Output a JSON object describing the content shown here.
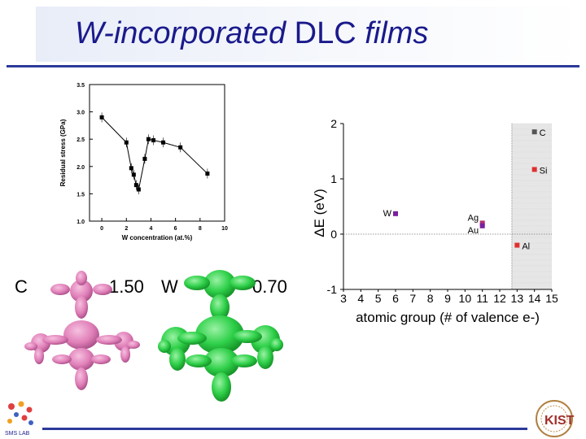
{
  "slide": {
    "title_italic": "W-incorporated",
    "title_dlc": "DLC",
    "title_films": "films",
    "footer_logo_text": "SMS LAB",
    "brand_color": "#1a1a8c",
    "rule_color": "#2b3a9b"
  },
  "molecules": {
    "c_label": "C",
    "c_value": "1.50",
    "w_label": "W",
    "w_value": "0.70",
    "c_color": "#e07fb8",
    "w_color": "#2fd04a"
  },
  "chart_data": [
    {
      "type": "line",
      "xlabel": "W concentration (at.%)",
      "ylabel": "Residual stress (GPa)",
      "xlim": [
        -1,
        10
      ],
      "ylim": [
        1.0,
        3.5
      ],
      "xticks": [
        "0",
        "2",
        "4",
        "6",
        "8",
        "10"
      ],
      "yticks": [
        "1.0",
        "1.5",
        "2.0",
        "2.5",
        "3.0",
        "3.5"
      ],
      "x": [
        0.0,
        2.0,
        2.4,
        2.6,
        2.8,
        3.0,
        3.5,
        3.8,
        4.2,
        5.0,
        6.4,
        8.6
      ],
      "y": [
        2.9,
        2.44,
        1.97,
        1.85,
        1.66,
        1.58,
        2.14,
        2.5,
        2.48,
        2.44,
        2.35,
        1.87
      ],
      "grid": false
    },
    {
      "type": "scatter",
      "xlabel": "atomic group (# of valence e-)",
      "ylabel": "ΔE (eV)",
      "xlim": [
        3,
        15
      ],
      "ylim": [
        -1,
        2
      ],
      "xticks": [
        "3",
        "4",
        "5",
        "6",
        "7",
        "8",
        "9",
        "10",
        "11",
        "12",
        "13",
        "14",
        "15"
      ],
      "yticks": [
        "-1",
        "0",
        "1",
        "2"
      ],
      "points": [
        {
          "label": "C",
          "x": 14,
          "y": 1.85,
          "color": "#555555"
        },
        {
          "label": "Si",
          "x": 14,
          "y": 1.17,
          "color": "#e03030"
        },
        {
          "label": "W",
          "x": 6,
          "y": 0.37,
          "color": "#7a1fa0"
        },
        {
          "label": "Ag",
          "x": 11,
          "y": 0.2,
          "color": "#b03070"
        },
        {
          "label": "Au",
          "x": 11,
          "y": 0.15,
          "color": "#7a1fa0"
        },
        {
          "label": "Al",
          "x": 13,
          "y": -0.2,
          "color": "#e03030"
        }
      ],
      "shaded_region_x": [
        12.7,
        15
      ],
      "grid": false
    }
  ]
}
